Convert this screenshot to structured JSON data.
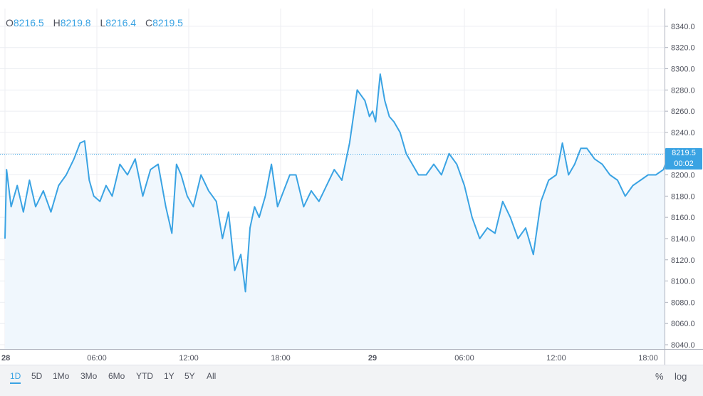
{
  "ohlc": {
    "open_label": "O",
    "open": "8216.5",
    "high_label": "H",
    "high": "8219.8",
    "low_label": "L",
    "low": "8216.4",
    "close_label": "C",
    "close": "8219.5"
  },
  "last_price": {
    "value": "8219.5",
    "countdown": "00:02"
  },
  "colors": {
    "line": "#3aa3e3",
    "fill": "#f0f7fd",
    "grid": "#eceef2",
    "accent": "#3aa3e3"
  },
  "ranges": [
    "1D",
    "5D",
    "1Mo",
    "3Mo",
    "6Mo",
    "YTD",
    "1Y",
    "5Y",
    "All"
  ],
  "active_range": "1D",
  "scale_buttons": {
    "percent": "%",
    "log": "log"
  },
  "chart_data": {
    "type": "area",
    "ylim": [
      8040,
      8350
    ],
    "grid": true,
    "price_ticks": [
      "8340.0",
      "8320.0",
      "8300.0",
      "8280.0",
      "8260.0",
      "8240.0",
      "8220.0",
      "8200.0",
      "8180.0",
      "8160.0",
      "8140.0",
      "8120.0",
      "8100.0",
      "8080.0",
      "8060.0",
      "8040.0"
    ],
    "price_tick_values": [
      8340,
      8320,
      8300,
      8280,
      8260,
      8240,
      8220,
      8200,
      8180,
      8160,
      8140,
      8120,
      8100,
      8080,
      8060,
      8040
    ],
    "time_ticks": [
      "28",
      "06:00",
      "12:00",
      "18:00",
      "29",
      "06:00",
      "12:00",
      "18:00"
    ],
    "time_tick_hours": [
      0,
      6,
      12,
      18,
      24,
      30,
      36,
      42
    ],
    "time_tick_bold": [
      true,
      false,
      false,
      false,
      true,
      false,
      false,
      false
    ],
    "x_hours": [
      0,
      0.1,
      0.4,
      0.8,
      1.2,
      1.6,
      2.0,
      2.5,
      3.0,
      3.5,
      4.0,
      4.5,
      4.9,
      5.2,
      5.5,
      5.8,
      6.2,
      6.6,
      7.0,
      7.5,
      8.0,
      8.5,
      9.0,
      9.5,
      10.0,
      10.5,
      10.9,
      11.2,
      11.5,
      11.9,
      12.3,
      12.8,
      13.3,
      13.8,
      14.2,
      14.6,
      15.0,
      15.4,
      15.7,
      16.0,
      16.3,
      16.6,
      17.0,
      17.4,
      17.8,
      18.2,
      18.6,
      19.0,
      19.5,
      20.0,
      20.5,
      21.0,
      21.5,
      22.0,
      22.5,
      23.0,
      23.5,
      23.8,
      24.0,
      24.2,
      24.5,
      24.8,
      25.1,
      25.4,
      25.8,
      26.2,
      26.6,
      27.0,
      27.5,
      28.0,
      28.5,
      29.0,
      29.5,
      30.0,
      30.5,
      31.0,
      31.5,
      32.0,
      32.5,
      33.0,
      33.5,
      34.0,
      34.5,
      35.0,
      35.5,
      36.0,
      36.4,
      36.8,
      37.2,
      37.6,
      38.0,
      38.5,
      39.0,
      39.5,
      40.0,
      40.5,
      41.0,
      41.5,
      42.0,
      42.5,
      43.0,
      43.3,
      43.6
    ],
    "y_values": [
      8140,
      8205,
      8170,
      8190,
      8165,
      8195,
      8170,
      8185,
      8165,
      8190,
      8200,
      8215,
      8230,
      8232,
      8195,
      8180,
      8175,
      8190,
      8180,
      8210,
      8200,
      8215,
      8180,
      8205,
      8210,
      8170,
      8145,
      8210,
      8200,
      8180,
      8170,
      8200,
      8185,
      8175,
      8140,
      8165,
      8110,
      8125,
      8090,
      8150,
      8170,
      8160,
      8180,
      8210,
      8170,
      8185,
      8200,
      8200,
      8170,
      8185,
      8175,
      8190,
      8205,
      8195,
      8230,
      8280,
      8270,
      8255,
      8260,
      8250,
      8295,
      8270,
      8255,
      8250,
      8240,
      8220,
      8210,
      8200,
      8200,
      8210,
      8200,
      8220,
      8210,
      8190,
      8160,
      8140,
      8150,
      8145,
      8175,
      8160,
      8140,
      8150,
      8125,
      8175,
      8195,
      8200,
      8230,
      8200,
      8210,
      8225,
      8225,
      8215,
      8210,
      8200,
      8195,
      8180,
      8190,
      8195,
      8200,
      8200,
      8205,
      8218,
      8219.5
    ]
  }
}
